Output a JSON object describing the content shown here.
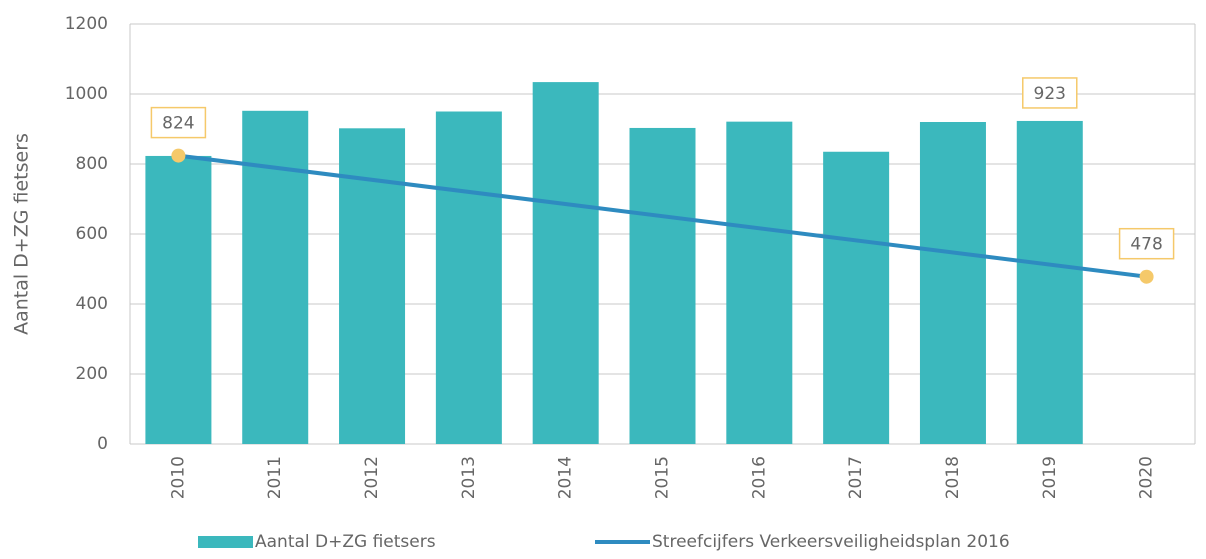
{
  "chart_data": {
    "type": "bar",
    "y_label": "Aantal D+ZG fietsers",
    "categories": [
      "2010",
      "2011",
      "2012",
      "2013",
      "2014",
      "2015",
      "2016",
      "2017",
      "2018",
      "2019",
      "2020"
    ],
    "series": [
      {
        "name": "Aantal D+ZG fietsers",
        "type": "bar",
        "color": "#3bb8bd",
        "values": [
          823,
          952,
          902,
          950,
          1034,
          903,
          921,
          835,
          920,
          923,
          null
        ],
        "value_labels": [
          null,
          null,
          null,
          null,
          null,
          null,
          null,
          null,
          null,
          "923",
          null
        ]
      },
      {
        "name": "Streefcijfers Verkeersveiligheidsplan 2016",
        "type": "line",
        "color": "#2e8bc0",
        "marker_color": "#f5c96a",
        "x": [
          "2010",
          "2020"
        ],
        "values": [
          824,
          478
        ]
      }
    ],
    "label_box_color": "#f5c96a",
    "ylim": [
      0,
      1200
    ],
    "yticks": [
      0,
      200,
      400,
      600,
      800,
      1000,
      1200
    ],
    "grid": true,
    "legend": "bottom"
  }
}
